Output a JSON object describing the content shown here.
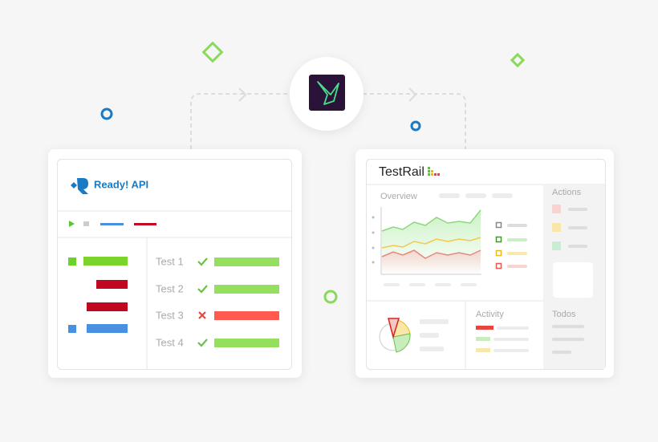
{
  "left_card": {
    "logo_text": "Ready! API",
    "tests": [
      "Test 1",
      "Test 2",
      "Test 3",
      "Test 4"
    ]
  },
  "right_card": {
    "logo_text": "TestRail",
    "overview": "Overview",
    "actions": "Actions",
    "activity": "Activity",
    "todos": "Todos"
  }
}
